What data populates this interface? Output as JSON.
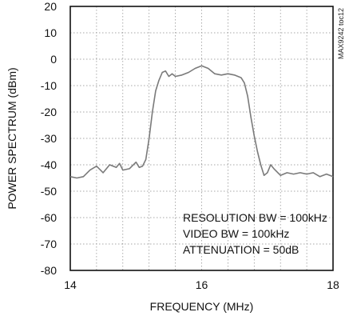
{
  "chart_data": {
    "type": "line",
    "title": "",
    "xlabel": "FREQUENCY (MHz)",
    "ylabel": "POWER SPECTRUM (dBm)",
    "xlim": [
      14,
      18
    ],
    "ylim": [
      -80,
      20
    ],
    "x_ticks": [
      14,
      16,
      18
    ],
    "x_tick_labels": [
      "14",
      "16",
      "18"
    ],
    "y_ticks": [
      20,
      10,
      0,
      -10,
      -20,
      -30,
      -40,
      -50,
      -60,
      -70,
      -80
    ],
    "y_tick_labels": [
      "20",
      "10",
      "0",
      "-10",
      "-20",
      "-30",
      "-40",
      "-50",
      "-60",
      "-70",
      "-80"
    ],
    "grid": true,
    "chart_id": "MAX9242 toc12",
    "annotations": [
      "RESOLUTION BW = 100kHz",
      "VIDEO BW = 100kHz",
      "ATTENUATION = 50dB"
    ],
    "line_color": "#7a7a7a",
    "series": [
      {
        "x": [
          14.0,
          14.1,
          14.2,
          14.3,
          14.4,
          14.5,
          14.6,
          14.7,
          14.75,
          14.8,
          14.9,
          15.0,
          15.05,
          15.1,
          15.15,
          15.2,
          15.25,
          15.3,
          15.35,
          15.4,
          15.45,
          15.5,
          15.55,
          15.6,
          15.7,
          15.8,
          15.9,
          16.0,
          16.1,
          16.2,
          16.3,
          16.4,
          16.5,
          16.6,
          16.65,
          16.7,
          16.75,
          16.8,
          16.85,
          16.9,
          16.95,
          17.0,
          17.05,
          17.1,
          17.2,
          17.3,
          17.4,
          17.5,
          17.6,
          17.7,
          17.8,
          17.9,
          18.0
        ],
        "y": [
          -44.5,
          -45,
          -44.5,
          -42,
          -40.5,
          -43,
          -40,
          -41,
          -39.5,
          -42,
          -41.5,
          -39,
          -41,
          -40.5,
          -38,
          -30,
          -20,
          -12,
          -8,
          -5,
          -4.5,
          -6.5,
          -5.5,
          -6.5,
          -6,
          -5,
          -3.5,
          -2.5,
          -3.5,
          -5.5,
          -6,
          -5.5,
          -6,
          -7,
          -9,
          -14,
          -22,
          -29,
          -35,
          -40,
          -44,
          -43,
          -40,
          -41.5,
          -44,
          -43,
          -43.5,
          -43,
          -43.5,
          -43,
          -44.5,
          -43.5,
          -44.5
        ]
      }
    ]
  }
}
